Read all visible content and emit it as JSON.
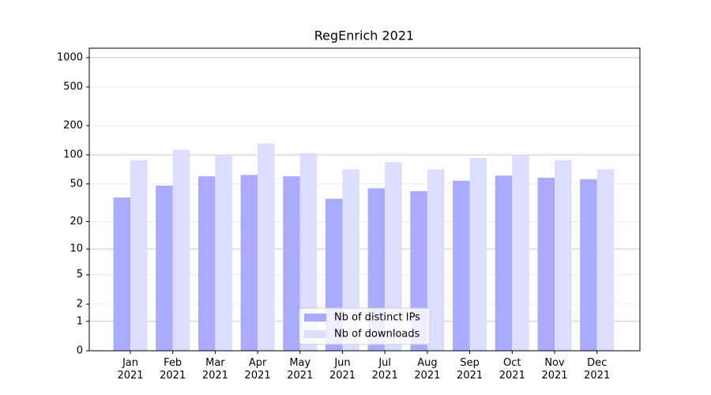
{
  "chart_data": {
    "type": "bar",
    "title": "RegEnrich 2021",
    "categories": [
      "Jan\n2021",
      "Feb\n2021",
      "Mar\n2021",
      "Apr\n2021",
      "May\n2021",
      "Jun\n2021",
      "Jul\n2021",
      "Aug\n2021",
      "Sep\n2021",
      "Oct\n2021",
      "Nov\n2021",
      "Dec\n2021"
    ],
    "series": [
      {
        "name": "Nb of distinct IPs",
        "color": "#aaaaff",
        "values": [
          36,
          48,
          60,
          62,
          60,
          35,
          45,
          42,
          54,
          61,
          58,
          56
        ]
      },
      {
        "name": "Nb of downloads",
        "color": "#ddddff",
        "values": [
          88,
          113,
          100,
          131,
          104,
          71,
          84,
          71,
          93,
          100,
          88,
          71
        ]
      }
    ],
    "yscale": "log1p",
    "ylim": [
      0,
      1247
    ],
    "yticks": [
      0,
      1,
      2,
      5,
      10,
      20,
      50,
      100,
      200,
      500,
      1000
    ],
    "grid": true,
    "legend": "lower center"
  }
}
